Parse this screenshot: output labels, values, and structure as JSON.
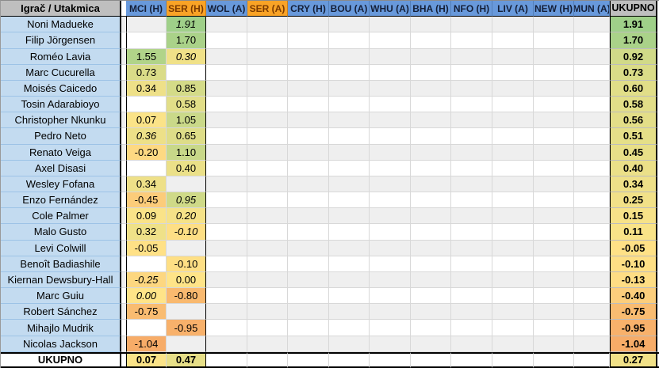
{
  "sheet": {
    "corner_label": "Igrač / Utakmica",
    "total_col_label": "UKUPNO",
    "total_row_label": "UKUPNO",
    "columns": [
      {
        "label": "MCI (H)",
        "style": "blue"
      },
      {
        "label": "SER (H)",
        "style": "orange"
      },
      {
        "label": "WOL (A)",
        "style": "blue"
      },
      {
        "label": "SER (A)",
        "style": "orange"
      },
      {
        "label": "CRY (H)",
        "style": "blue"
      },
      {
        "label": "BOU (A)",
        "style": "blue"
      },
      {
        "label": "WHU (A)",
        "style": "blue"
      },
      {
        "label": "BHA (H)",
        "style": "blue"
      },
      {
        "label": "NFO (H)",
        "style": "blue"
      },
      {
        "label": "LIV (A)",
        "style": "blue"
      },
      {
        "label": "NEW (H)",
        "style": "blue"
      },
      {
        "label": "MUN (A)",
        "style": "blue"
      }
    ],
    "players": [
      {
        "name": "Noni Madueke",
        "mci": null,
        "ser": "1.91",
        "ser_italic": true,
        "total": "1.91"
      },
      {
        "name": "Filip Jörgensen",
        "mci": null,
        "ser": "1.70",
        "ser_italic": false,
        "total": "1.70"
      },
      {
        "name": "Roméo Lavia",
        "mci": "1.55",
        "mci_italic": false,
        "ser": "0.30",
        "ser_italic": true,
        "total": "0.92"
      },
      {
        "name": "Marc Cucurella",
        "mci": "0.73",
        "mci_italic": false,
        "ser": null,
        "total": "0.73"
      },
      {
        "name": "Moisés Caicedo",
        "mci": "0.34",
        "mci_italic": false,
        "ser": "0.85",
        "ser_italic": false,
        "total": "0.60"
      },
      {
        "name": "Tosin Adarabioyo",
        "mci": null,
        "ser": "0.58",
        "ser_italic": false,
        "total": "0.58"
      },
      {
        "name": "Christopher Nkunku",
        "mci": "0.07",
        "mci_italic": false,
        "ser": "1.05",
        "ser_italic": false,
        "total": "0.56"
      },
      {
        "name": "Pedro Neto",
        "mci": "0.36",
        "mci_italic": true,
        "ser": "0.65",
        "ser_italic": false,
        "total": "0.51"
      },
      {
        "name": "Renato Veiga",
        "mci": "-0.20",
        "mci_italic": false,
        "ser": "1.10",
        "ser_italic": false,
        "total": "0.45"
      },
      {
        "name": "Axel Disasi",
        "mci": null,
        "ser": "0.40",
        "ser_italic": false,
        "total": "0.40"
      },
      {
        "name": "Wesley Fofana",
        "mci": "0.34",
        "mci_italic": false,
        "ser": null,
        "total": "0.34"
      },
      {
        "name": "Enzo Fernández",
        "mci": "-0.45",
        "mci_italic": false,
        "ser": "0.95",
        "ser_italic": true,
        "total": "0.25"
      },
      {
        "name": "Cole Palmer",
        "mci": "0.09",
        "mci_italic": false,
        "ser": "0.20",
        "ser_italic": true,
        "total": "0.15"
      },
      {
        "name": "Malo Gusto",
        "mci": "0.32",
        "mci_italic": false,
        "ser": "-0.10",
        "ser_italic": true,
        "total": "0.11"
      },
      {
        "name": "Levi Colwill",
        "mci": "-0.05",
        "mci_italic": false,
        "ser": null,
        "total": "-0.05"
      },
      {
        "name": "Benoît Badiashile",
        "mci": null,
        "ser": "-0.10",
        "ser_italic": false,
        "total": "-0.10"
      },
      {
        "name": "Kiernan Dewsbury-Hall",
        "mci": "-0.25",
        "mci_italic": true,
        "ser": "0.00",
        "ser_italic": false,
        "total": "-0.13"
      },
      {
        "name": "Marc Guiu",
        "mci": "0.00",
        "mci_italic": true,
        "ser": "-0.80",
        "ser_italic": false,
        "total": "-0.40"
      },
      {
        "name": "Robert Sánchez",
        "mci": "-0.75",
        "mci_italic": false,
        "ser": null,
        "total": "-0.75"
      },
      {
        "name": "Mihajlo Mudrik",
        "mci": null,
        "ser": "-0.95",
        "ser_italic": false,
        "total": "-0.95"
      },
      {
        "name": "Nicolas Jackson",
        "mci": "-1.04",
        "mci_italic": false,
        "ser": null,
        "total": "-1.04"
      }
    ],
    "totals": {
      "mci": "0.07",
      "ser": "0.47",
      "total": "0.27"
    },
    "colors": {
      "header_blue": "#6899DB",
      "header_blue_text": "#141F38",
      "header_orange": "#F9A326",
      "header_orange_text": "#7B3A00",
      "header_gray": "#BFBFBF",
      "player_bg": "#C3DBF0",
      "player_line": "#9DC3E6",
      "band_gray": "#EFEFEF",
      "band_white": "#FFFFFF",
      "gridline": "#D8D8D8",
      "scale_min": {
        "value": -1.04,
        "color": "#F7AC68"
      },
      "scale_mid": {
        "value": 0,
        "color": "#FFE488"
      },
      "scale_max": {
        "value": 1.91,
        "color": "#9FD089"
      }
    }
  }
}
